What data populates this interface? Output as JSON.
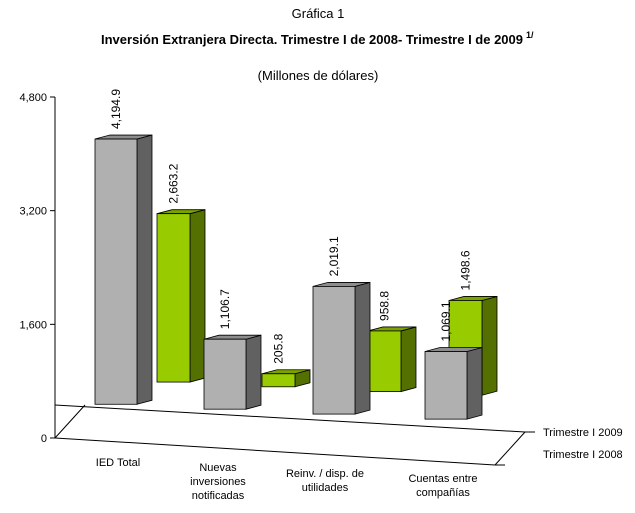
{
  "chart_data": {
    "type": "bar3d",
    "supertitle": "Gráfica 1",
    "title": "Inversión Extranjera Directa. Trimestre I de 2008- Trimestre I de 2009",
    "title_note": "1/",
    "subtitle": "(Millones de dólares)",
    "categories": [
      "IED Total",
      "Nuevas inversiones notificadas",
      "Reinv. / disp. de utilidades",
      "Cuentas entre compañías"
    ],
    "series": [
      {
        "name": "Trimestre I 2008",
        "color": "#b0b0b0",
        "values": [
          4194.9,
          1106.7,
          2019.1,
          1069.1
        ],
        "value_labels": [
          "4,194.9",
          "1,106.7",
          "2,019.1",
          "1,069.1"
        ]
      },
      {
        "name": "Trimestre I 2009",
        "color": "#99cc00",
        "values": [
          2663.2,
          205.8,
          958.8,
          1498.6
        ],
        "value_labels": [
          "2,663.2",
          "205.8",
          "958.8",
          "1,498.6"
        ]
      }
    ],
    "ylim": [
      0,
      4800
    ],
    "yticks": [
      0,
      {
        "value": 1600,
        "label": "1,600"
      },
      {
        "value": 3200,
        "label": "3,200"
      },
      {
        "value": 4800,
        "label": "4,800"
      }
    ]
  }
}
